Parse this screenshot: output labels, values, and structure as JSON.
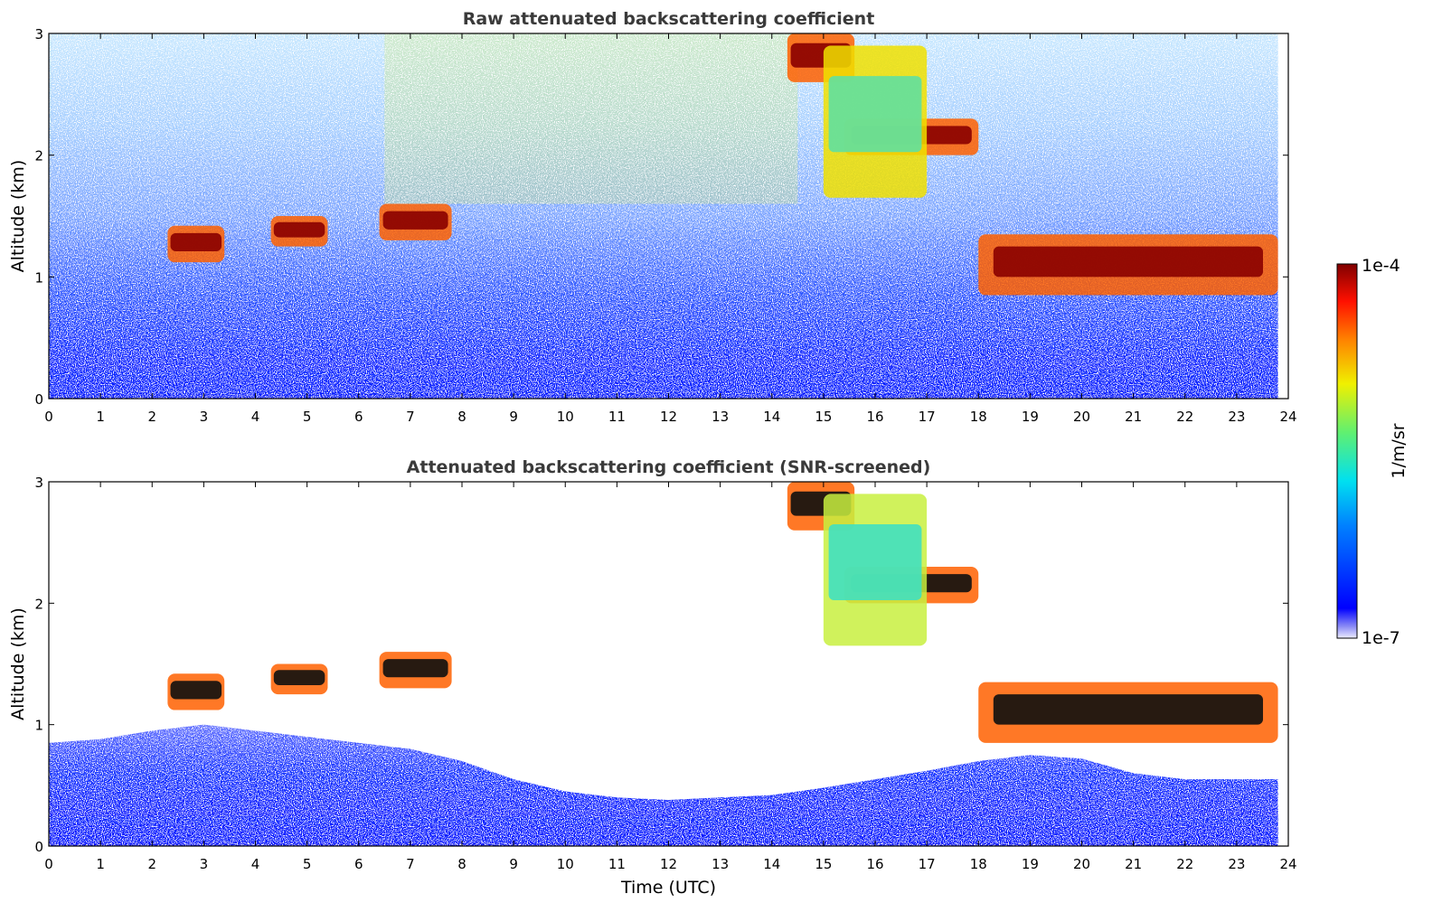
{
  "chart_data": [
    {
      "type": "heatmap",
      "title": "Raw attenuated backscattering coefficient",
      "xlabel": "",
      "ylabel": "Altitude (km)",
      "xlim": [
        0,
        24
      ],
      "ylim": [
        0,
        3
      ],
      "xticks": [
        "0",
        "1",
        "2",
        "3",
        "4",
        "5",
        "6",
        "7",
        "8",
        "9",
        "10",
        "11",
        "12",
        "13",
        "14",
        "15",
        "16",
        "17",
        "18",
        "19",
        "20",
        "21",
        "22",
        "23",
        "24"
      ],
      "yticks": [
        "0",
        "1",
        "2",
        "3"
      ],
      "grid": false,
      "cloud_layers": [
        {
          "x": [
            2.3,
            3.4
          ],
          "y": [
            1.12,
            1.42
          ],
          "level": "high"
        },
        {
          "x": [
            4.3,
            5.4
          ],
          "y": [
            1.25,
            1.5
          ],
          "level": "high"
        },
        {
          "x": [
            6.4,
            7.8
          ],
          "y": [
            1.3,
            1.6
          ],
          "level": "high"
        },
        {
          "x": [
            14.3,
            15.6
          ],
          "y": [
            2.6,
            3.0
          ],
          "level": "high"
        },
        {
          "x": [
            15.4,
            18.0
          ],
          "y": [
            2.0,
            2.3
          ],
          "level": "high"
        },
        {
          "x": [
            15.0,
            17.0
          ],
          "y": [
            1.65,
            2.9
          ],
          "level": "medium"
        },
        {
          "x": [
            18.0,
            23.8
          ],
          "y": [
            0.85,
            1.35
          ],
          "level": "high"
        }
      ]
    },
    {
      "type": "heatmap",
      "title": "Attenuated backscattering coefficient (SNR-screened)",
      "xlabel": "Time (UTC)",
      "ylabel": "Altitude (km)",
      "xlim": [
        0,
        24
      ],
      "ylim": [
        0,
        3
      ],
      "xticks": [
        "0",
        "1",
        "2",
        "3",
        "4",
        "5",
        "6",
        "7",
        "8",
        "9",
        "10",
        "11",
        "12",
        "13",
        "14",
        "15",
        "16",
        "17",
        "18",
        "19",
        "20",
        "21",
        "22",
        "23",
        "24"
      ],
      "yticks": [
        "0",
        "1",
        "2",
        "3"
      ],
      "grid": false,
      "screened": true
    }
  ],
  "colorbar": {
    "label": "1/m/sr",
    "max_label": "1e-4",
    "min_label": "1e-7",
    "min": 1e-07,
    "max": 0.0001,
    "scale": "log",
    "colormap": "jet"
  }
}
